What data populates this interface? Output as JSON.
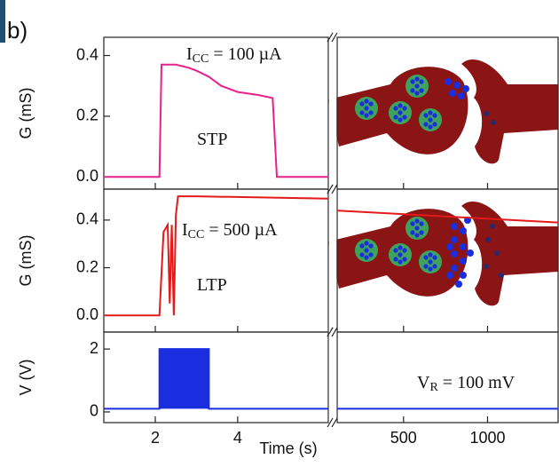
{
  "panel_label": "b)",
  "chart_data": [
    {
      "type": "line",
      "ylabel": "G (mS)",
      "ylim": [
        -0.04,
        0.46
      ],
      "yticks": [
        {
          "value": 0,
          "label": "0.0"
        },
        0.2,
        0.4
      ],
      "annotations": [
        {
          "main": "I",
          "sub": "CC",
          "rest": " = 100 µA"
        },
        {
          "main": "STP"
        }
      ],
      "series": [
        {
          "color": "#e8208c",
          "xaxis": "x",
          "x": [
            0.75,
            2.1,
            2.15,
            2.5,
            2.8,
            3.0,
            3.3,
            3.6,
            4.0,
            4.5,
            4.85,
            4.95,
            6.2
          ],
          "values": [
            0.0,
            0.0,
            0.37,
            0.37,
            0.36,
            0.35,
            0.33,
            0.3,
            0.28,
            0.27,
            0.26,
            0.0,
            0.0
          ]
        }
      ]
    },
    {
      "type": "line",
      "ylabel": "G (mS)",
      "ylim": [
        -0.07,
        0.53
      ],
      "yticks": [
        {
          "value": 0,
          "label": "0.0"
        },
        0.2,
        0.4
      ],
      "annotations": [
        {
          "main": "I",
          "sub": "CC",
          "rest": " = 500 µA"
        },
        {
          "main": "LTP"
        }
      ],
      "series": [
        {
          "color": "#e31a1a",
          "xaxis": "x",
          "x": [
            0.75,
            2.1,
            2.2,
            2.3,
            2.35,
            2.4,
            2.45,
            2.5,
            2.55,
            3.0,
            6.2
          ],
          "values": [
            0.0,
            0.0,
            0.35,
            0.38,
            0.05,
            0.38,
            0.0,
            0.42,
            0.5,
            0.5,
            0.49
          ]
        },
        {
          "color": "#e31a1a",
          "xaxis": "x2",
          "x": [
            105,
            1420
          ],
          "values": [
            0.44,
            0.39
          ]
        }
      ]
    },
    {
      "type": "line",
      "ylabel": "V (V)",
      "ylim": [
        -0.34,
        2.54
      ],
      "yticks": [
        0,
        2
      ],
      "xlabel": "Time (s)",
      "xlim": [
        0.75,
        6.2
      ],
      "xticks": [
        2,
        4
      ],
      "x2lim": [
        105,
        1420
      ],
      "x2ticks": [
        500,
        1000
      ],
      "annotations": [
        {
          "main": "V",
          "sub": "R",
          "rest": " = 100 mV"
        }
      ],
      "series": [
        {
          "color": "#1a2ee0",
          "xaxis": "x",
          "filled": true,
          "x": [
            0.75,
            2.1,
            2.1,
            3.3,
            3.3,
            6.2
          ],
          "values": [
            0.1,
            0.1,
            2.0,
            2.0,
            0.1,
            0.1
          ]
        },
        {
          "color": "#1a2ee0",
          "xaxis": "x2",
          "x": [
            105,
            1420
          ],
          "values": [
            0.1,
            0.1
          ]
        }
      ]
    }
  ]
}
